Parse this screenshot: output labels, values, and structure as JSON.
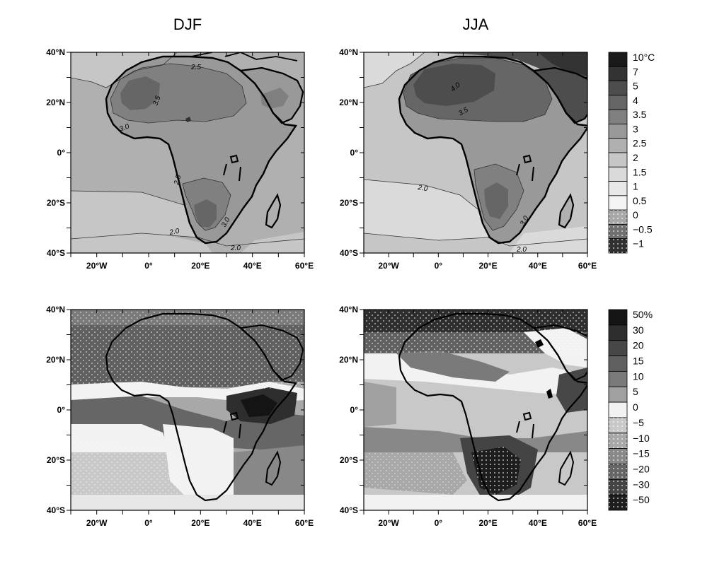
{
  "figure": {
    "column_titles": [
      "DJF",
      "JJA"
    ],
    "lat_labels": [
      "40°N",
      "20°N",
      "0°",
      "20°S",
      "40°S"
    ],
    "lon_labels": [
      "20°W",
      "0°",
      "20°E",
      "40°E",
      "60°E"
    ]
  },
  "legends": {
    "temperature": [
      "10°C",
      "7",
      "5",
      "4",
      "3.5",
      "3",
      "2.5",
      "2",
      "1.5",
      "1",
      "0.5",
      "0",
      "−0.5",
      "−1"
    ],
    "precipitation": [
      "50%",
      "30",
      "20",
      "15",
      "10",
      "5",
      "0",
      "−5",
      "−10",
      "−15",
      "−20",
      "−30",
      "−50"
    ]
  },
  "contour_labels": {
    "djf_temp": [
      "3.5",
      "3.0",
      "2.5",
      "3.0",
      "2.0",
      "2.0",
      "2.5"
    ],
    "jja_temp": [
      "4.0",
      "3.5",
      "2.0",
      "3.0",
      "2.0"
    ]
  },
  "colors": {
    "temp_scale": [
      "#1a1a1a",
      "#333333",
      "#4d4d4d",
      "#666666",
      "#808080",
      "#999999",
      "#b0b0b0",
      "#c6c6c6",
      "#dadada",
      "#e8e8e8",
      "#f4f4f4",
      "#a8a8a8",
      "#707070",
      "#303030"
    ],
    "precip_scale": [
      "#141414",
      "#2e2e2e",
      "#474747",
      "#606060",
      "#7a7a7a",
      "#a0a0a0",
      "#f2f2f2",
      "#c8c8c8",
      "#a8a8a8",
      "#888888",
      "#666666",
      "#444444",
      "#1e1e1e"
    ]
  }
}
